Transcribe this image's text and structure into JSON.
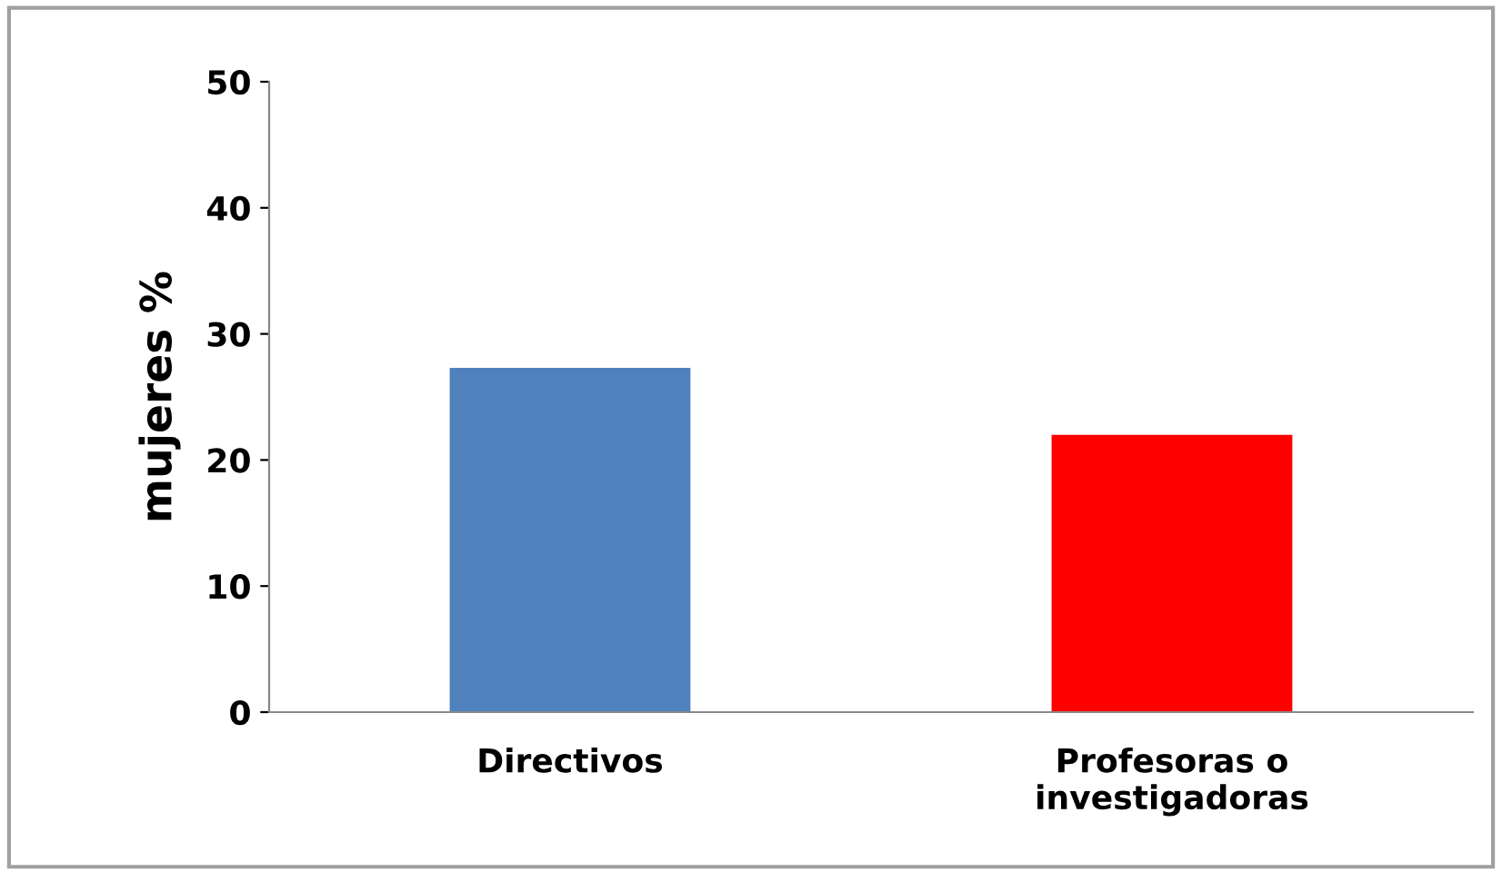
{
  "chart_data": {
    "type": "bar",
    "ylabel": "mujeres %",
    "categories": [
      "Directivos",
      "Profesoras o\ninvestigadoras"
    ],
    "values": [
      27.3,
      22.0
    ],
    "colors": [
      "#4f81bd",
      "#ff0000"
    ],
    "ylim": [
      0,
      50
    ],
    "yticks": [
      0,
      10,
      20,
      30,
      40,
      50
    ],
    "grid": false,
    "legend": false
  }
}
